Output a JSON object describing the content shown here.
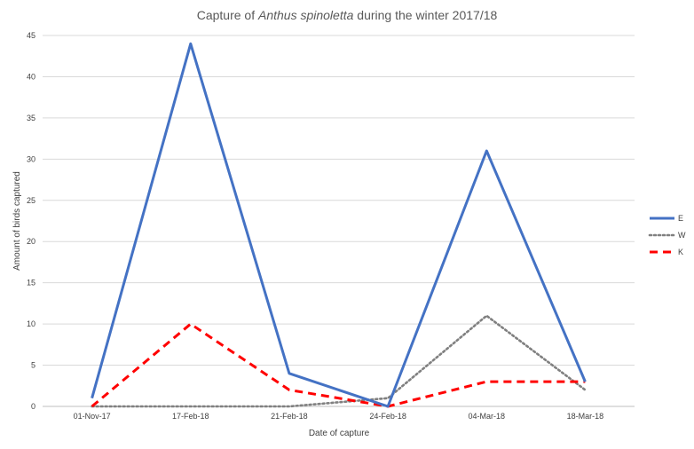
{
  "chart_data": {
    "type": "line",
    "title_prefix": "Capture of ",
    "title_species": "Anthus spinoletta",
    "title_suffix": " during the winter 2017/18",
    "xlabel": "Date of capture",
    "ylabel": "Amount of birds captured",
    "categories": [
      "01-Nov-17",
      "17-Feb-18",
      "21-Feb-18",
      "24-Feb-18",
      "04-Mar-18",
      "18-Mar-18"
    ],
    "ylim": [
      0,
      45
    ],
    "yticks": [
      0,
      5,
      10,
      15,
      20,
      25,
      30,
      35,
      40,
      45
    ],
    "grid": true,
    "legend_position": "right",
    "series": [
      {
        "name": "E",
        "values": [
          1,
          44,
          4,
          0,
          31,
          3
        ],
        "color": "#4472C4",
        "style": "solid"
      },
      {
        "name": "W",
        "values": [
          0,
          0,
          0,
          1,
          11,
          2
        ],
        "color": "#808080",
        "style": "dotted"
      },
      {
        "name": "K",
        "values": [
          0,
          10,
          2,
          0,
          3,
          3
        ],
        "color": "#FF0000",
        "style": "dashed"
      }
    ]
  }
}
